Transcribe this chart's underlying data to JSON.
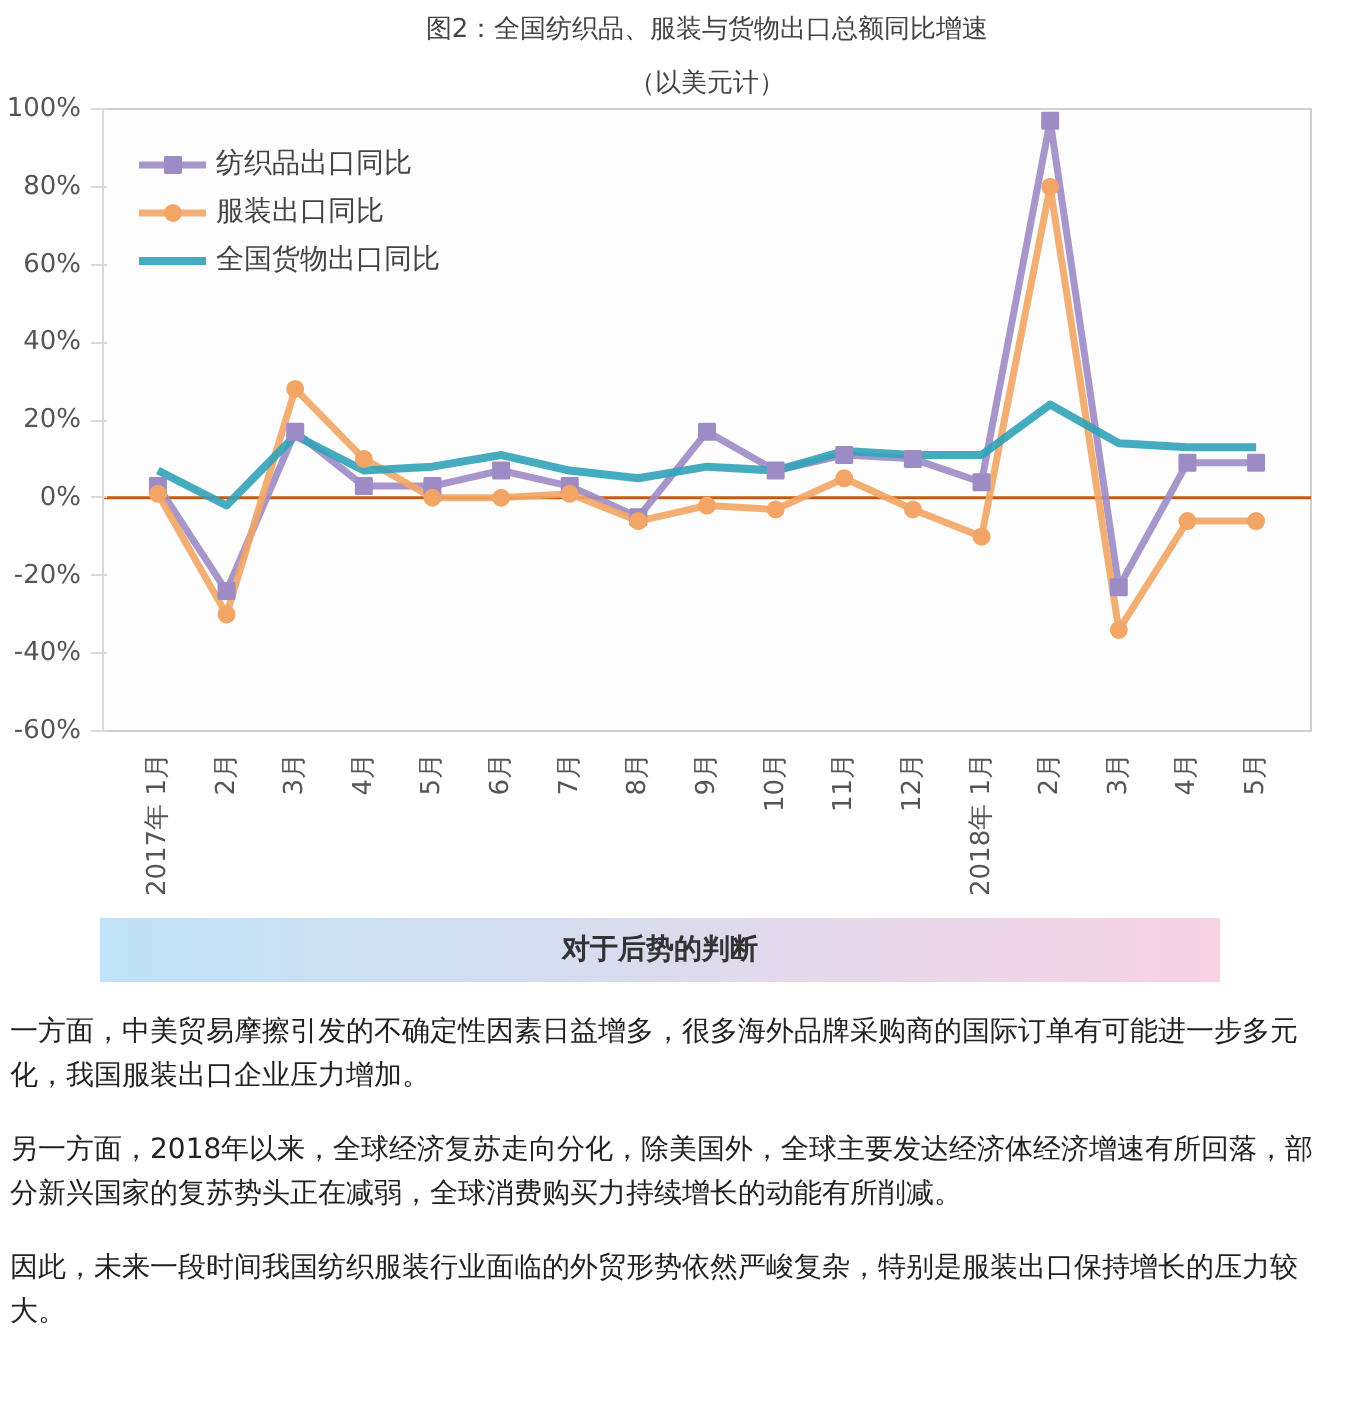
{
  "chart_data": {
    "type": "line",
    "title": "图2：全国纺织品、服装与货物出口总额同比增速",
    "subtitle": "（以美元计）",
    "categories": [
      "2017年 1月",
      "2月",
      "3月",
      "4月",
      "5月",
      "6月",
      "7月",
      "8月",
      "9月",
      "10月",
      "11月",
      "12月",
      "2018年 1月",
      "2月",
      "3月",
      "4月",
      "5月"
    ],
    "series": [
      {
        "name": "纺织品出口同比",
        "color": "#9d8bc6",
        "marker": "square",
        "values": [
          3,
          -24,
          17,
          3,
          3,
          7,
          3,
          -5,
          17,
          7,
          11,
          10,
          4,
          97,
          -23,
          9,
          9
        ]
      },
      {
        "name": "服装出口同比",
        "color": "#f2a565",
        "marker": "circle",
        "values": [
          1,
          -30,
          28,
          10,
          0,
          0,
          1,
          -6,
          -2,
          -3,
          5,
          -3,
          -10,
          80,
          -34,
          -6,
          -6
        ]
      },
      {
        "name": "全国货物出口同比",
        "color": "#31a2b8",
        "marker": "none",
        "values": [
          7,
          -2,
          16,
          7,
          8,
          11,
          7,
          5,
          8,
          7,
          12,
          11,
          11,
          24,
          14,
          13,
          13
        ]
      }
    ],
    "ylim": [
      -60,
      100
    ],
    "yticks": [
      {
        "value": -60,
        "label": "-60%"
      },
      {
        "value": -40,
        "label": "-40%"
      },
      {
        "value": -20,
        "label": "-20%"
      },
      {
        "value": 0,
        "label": "0%"
      },
      {
        "value": 20,
        "label": "20%"
      },
      {
        "value": 40,
        "label": "40%"
      },
      {
        "value": 60,
        "label": "60%"
      },
      {
        "value": 80,
        "label": "80%"
      },
      {
        "value": 100,
        "label": "100%"
      }
    ],
    "ref_lines": [
      {
        "axis": "y",
        "value": 0,
        "color": "#c55a11"
      }
    ],
    "grid": false,
    "legend": "top left",
    "annotations": [
      "对于后势的判断",
      "一方面，中美贸易摩擦引发的不确定性因素日益增多，很多海外品牌采购商的国际订单有可能进一步多元化，我国服装出口企业压力增加。",
      "另一方面，2018年以来，全球经济复苏走向分化，除美国外，全球主要发达经济体经济增速有所回落，部分新兴国家的复苏势头正在减弱，全球消费购买力持续增长的动能有所削减。",
      "因此，未来一段时间我国纺织服装行业面临的外贸形势依然严峻复杂，特别是服装出口保持增长的压力较大。"
    ]
  }
}
